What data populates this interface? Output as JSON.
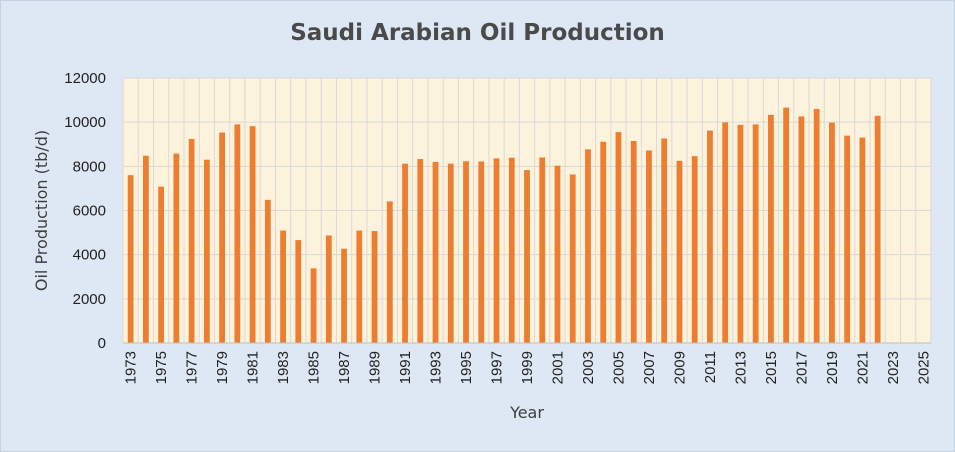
{
  "chart_data": {
    "type": "bar",
    "title": "Saudi Arabian Oil Production",
    "xlabel": "Year",
    "ylabel": "Oil Production (tb/d)",
    "ylim": [
      0,
      12000
    ],
    "xlim": [
      1973,
      2025
    ],
    "yticks": [
      "0",
      "2000",
      "4000",
      "6000",
      "8000",
      "10000",
      "12000"
    ],
    "xticks": [
      "1973",
      "1975",
      "1977",
      "1979",
      "1981",
      "1983",
      "1985",
      "1987",
      "1989",
      "1991",
      "1993",
      "1995",
      "1997",
      "1999",
      "2001",
      "2003",
      "2005",
      "2007",
      "2009",
      "2011",
      "2013",
      "2015",
      "2017",
      "2019",
      "2021",
      "2023",
      "2025"
    ],
    "grid": true,
    "colors": {
      "bar": "#ed7d31",
      "plot_background": "#fdf3dc",
      "chart_background": "#dde8f4",
      "grid": "#d9d9d9"
    },
    "categories": [
      1973,
      1974,
      1975,
      1976,
      1977,
      1978,
      1979,
      1980,
      1981,
      1982,
      1983,
      1984,
      1985,
      1986,
      1987,
      1988,
      1989,
      1990,
      1991,
      1992,
      1993,
      1994,
      1995,
      1996,
      1997,
      1998,
      1999,
      2000,
      2001,
      2002,
      2003,
      2004,
      2005,
      2006,
      2007,
      2008,
      2009,
      2010,
      2011,
      2012,
      2013,
      2014,
      2015,
      2016,
      2017,
      2018,
      2019,
      2020,
      2021,
      2022
    ],
    "values": [
      7600,
      8480,
      7080,
      8580,
      9240,
      8300,
      9530,
      9900,
      9820,
      6480,
      5090,
      4660,
      3380,
      4870,
      4270,
      5090,
      5070,
      6410,
      8120,
      8330,
      8200,
      8120,
      8230,
      8220,
      8360,
      8390,
      7830,
      8400,
      8030,
      7630,
      8770,
      9110,
      9550,
      9150,
      8720,
      9260,
      8250,
      8460,
      9620,
      9990,
      9880,
      9900,
      10330,
      10660,
      10260,
      10600,
      9980,
      9390,
      9300,
      10290
    ]
  }
}
